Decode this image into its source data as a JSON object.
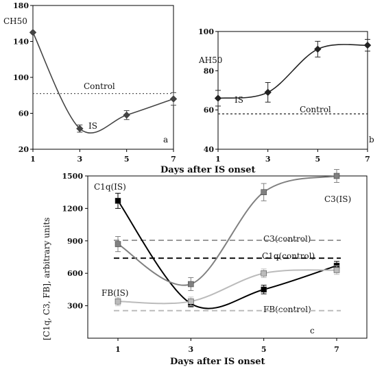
{
  "chart_data": [
    {
      "id": "a",
      "type": "line",
      "panel_label": "a",
      "ylabel": "CH50",
      "xlabel": "",
      "xlim": [
        1,
        7
      ],
      "ylim": [
        20,
        180
      ],
      "xticks": [
        1,
        3,
        5,
        7
      ],
      "yticks": [
        20,
        60,
        100,
        140,
        180
      ],
      "series": [
        {
          "name": "IS",
          "x": [
            1,
            3,
            5,
            7
          ],
          "y": [
            150,
            43,
            58,
            76
          ],
          "err": [
            0,
            4,
            5,
            7
          ],
          "color": "#444444",
          "marker": "diamond"
        }
      ],
      "reference_lines": [
        {
          "name": "Control",
          "y": 82,
          "color": "#555555",
          "dash": "2,3"
        }
      ]
    },
    {
      "id": "b",
      "type": "line",
      "panel_label": "b",
      "ylabel": "AH50",
      "xlabel": "",
      "xlim": [
        1,
        7
      ],
      "ylim": [
        40,
        100
      ],
      "xticks": [
        1,
        3,
        5,
        7
      ],
      "yticks": [
        40,
        60,
        80,
        100
      ],
      "series": [
        {
          "name": "IS",
          "x": [
            1,
            3,
            5,
            7
          ],
          "y": [
            66,
            69,
            91,
            93
          ],
          "err": [
            4,
            5,
            4,
            3
          ],
          "color": "#222222",
          "marker": "diamond"
        }
      ],
      "reference_lines": [
        {
          "name": "Control",
          "y": 58,
          "color": "#222222",
          "dash": "3,3"
        }
      ]
    },
    {
      "id": "c",
      "type": "line",
      "panel_label": "c",
      "ylabel": "[C1q, C3, FB], arbitrary units",
      "xlabel": "Days after IS onset",
      "xlim": [
        1,
        7
      ],
      "ylim": [
        0,
        1500
      ],
      "xticks": [
        1,
        3,
        5,
        7
      ],
      "yticks": [
        300,
        600,
        900,
        1200,
        1500
      ],
      "series": [
        {
          "name": "C1q(IS)",
          "x": [
            1,
            3,
            5,
            7
          ],
          "y": [
            1270,
            320,
            450,
            670
          ],
          "err": [
            70,
            30,
            40,
            40
          ],
          "color": "#000000",
          "marker": "square"
        },
        {
          "name": "C3(IS)",
          "x": [
            1,
            3,
            5,
            7
          ],
          "y": [
            870,
            500,
            1350,
            1500
          ],
          "err": [
            70,
            60,
            80,
            60
          ],
          "color": "#808080",
          "marker": "square"
        },
        {
          "name": "FB(IS)",
          "x": [
            1,
            3,
            5,
            7
          ],
          "y": [
            340,
            340,
            600,
            630
          ],
          "err": [
            40,
            40,
            40,
            40
          ],
          "color": "#bbbbbb",
          "marker": "square"
        }
      ],
      "reference_lines": [
        {
          "name": "C3(control)",
          "y": 905,
          "color": "#999999",
          "dash": "8,5"
        },
        {
          "name": "C1q(control)",
          "y": 740,
          "color": "#111111",
          "dash": "8,5"
        },
        {
          "name": "FB(control)",
          "y": 255,
          "color": "#bbbbbb",
          "dash": "8,5"
        }
      ]
    }
  ],
  "labels": {
    "panel_a": {
      "ylabel": "CH50",
      "control": "Control",
      "is": "IS",
      "corner": "a"
    },
    "panel_b": {
      "ylabel": "AH50",
      "control": "Control",
      "is": "IS",
      "corner": "b"
    },
    "panel_c": {
      "ylabel": "[C1q, C3, FB], arbitrary units",
      "corner": "c",
      "c1q_is": "C1q(IS)",
      "c3_is": "C3(IS)",
      "fb_is": "FB(IS)",
      "c3_control": "C3(control)",
      "c1q_control": "C1q(control)",
      "fb_control": "FB(control)"
    },
    "x_label_top": "Days after IS onset",
    "x_label_bottom": "Days after IS onset"
  }
}
